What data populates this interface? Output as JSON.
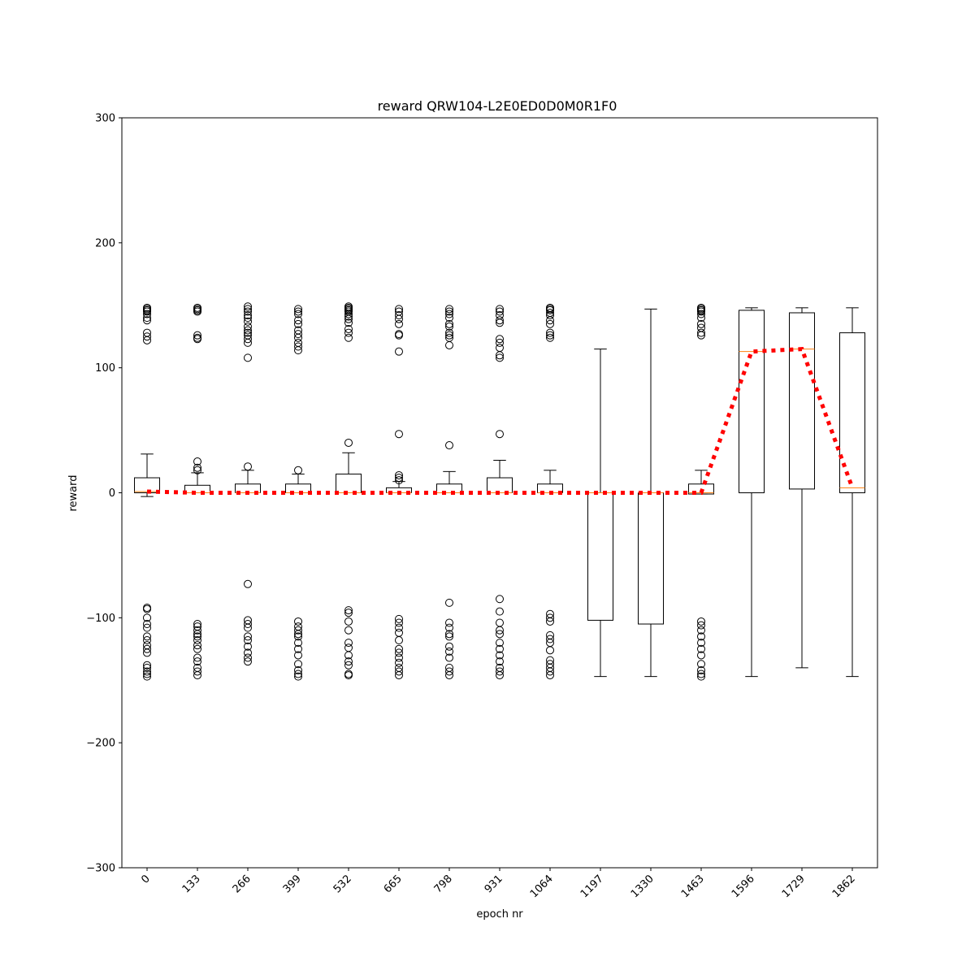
{
  "chart_data": {
    "type": "box",
    "title": "reward QRW104-L2E0ED0D0M0R1F0",
    "xlabel": "epoch nr",
    "ylabel": "reward",
    "ylim": [
      -300,
      300
    ],
    "yticks": [
      -300,
      -200,
      -100,
      0,
      100,
      200,
      300
    ],
    "ytick_labels": [
      "−300",
      "−200",
      "−100",
      "0",
      "100",
      "200",
      "300"
    ],
    "categories": [
      "0",
      "133",
      "266",
      "399",
      "532",
      "665",
      "798",
      "931",
      "1064",
      "1197",
      "1330",
      "1463",
      "1596",
      "1729",
      "1862"
    ],
    "box_color": "#000000",
    "median_color": "#ff7f0e",
    "mean_line_color": "#ff0000",
    "boxes": [
      {
        "q1": 0,
        "median": 1,
        "q3": 12,
        "whisker_low": -3,
        "whisker_high": 31,
        "outliers": [
          148,
          147,
          146,
          145,
          143,
          140,
          138,
          128,
          125,
          122,
          -92,
          -93,
          -100,
          -105,
          -108,
          -115,
          -118,
          -122,
          -125,
          -128,
          -138,
          -140,
          -143,
          -145,
          -147
        ]
      },
      {
        "q1": 0,
        "median": 0,
        "q3": 6,
        "whisker_low": 0,
        "whisker_high": 16,
        "outliers": [
          148,
          147,
          146,
          145,
          126,
          124,
          123,
          25,
          20,
          18,
          -105,
          -107,
          -110,
          -113,
          -115,
          -118,
          -122,
          -125,
          -132,
          -135,
          -140,
          -143,
          -146
        ]
      },
      {
        "q1": 0,
        "median": 0,
        "q3": 7,
        "whisker_low": 0,
        "whisker_high": 18,
        "outliers": [
          149,
          147,
          145,
          142,
          140,
          137,
          133,
          130,
          128,
          126,
          123,
          120,
          108,
          21,
          -73,
          -102,
          -105,
          -108,
          -115,
          -118,
          -123,
          -128,
          -132,
          -135
        ]
      },
      {
        "q1": 0,
        "median": 0,
        "q3": 7,
        "whisker_low": 0,
        "whisker_high": 15,
        "outliers": [
          147,
          145,
          143,
          138,
          135,
          130,
          127,
          124,
          120,
          117,
          114,
          18,
          -103,
          -107,
          -110,
          -113,
          -115,
          -120,
          -125,
          -130,
          -137,
          -142,
          -145,
          -147
        ]
      },
      {
        "q1": 0,
        "median": 0,
        "q3": 15,
        "whisker_low": 0,
        "whisker_high": 32,
        "outliers": [
          149,
          148,
          147,
          146,
          145,
          143,
          141,
          139,
          136,
          131,
          128,
          124,
          40,
          -94,
          -96,
          -103,
          -110,
          -120,
          -124,
          -130,
          -135,
          -138,
          -145,
          -146
        ]
      },
      {
        "q1": 0,
        "median": 0,
        "q3": 4,
        "whisker_low": 0,
        "whisker_high": 9,
        "outliers": [
          147,
          145,
          142,
          139,
          135,
          127,
          126,
          113,
          47,
          14,
          12,
          10,
          -101,
          -104,
          -108,
          -112,
          -118,
          -125,
          -128,
          -132,
          -136,
          -140,
          -143,
          -146
        ]
      },
      {
        "q1": 0,
        "median": 0,
        "q3": 7,
        "whisker_low": 0,
        "whisker_high": 17,
        "outliers": [
          147,
          145,
          143,
          140,
          135,
          133,
          128,
          126,
          124,
          118,
          38,
          -88,
          -104,
          -108,
          -113,
          -115,
          -123,
          -127,
          -132,
          -140,
          -143,
          -146
        ]
      },
      {
        "q1": 0,
        "median": 0,
        "q3": 12,
        "whisker_low": 0,
        "whisker_high": 26,
        "outliers": [
          147,
          145,
          142,
          138,
          136,
          123,
          120,
          116,
          110,
          108,
          47,
          -85,
          -95,
          -104,
          -110,
          -113,
          -120,
          -125,
          -130,
          -135,
          -140,
          -143,
          -146
        ]
      },
      {
        "q1": 0,
        "median": 0,
        "q3": 7,
        "whisker_low": 0,
        "whisker_high": 18,
        "outliers": [
          148,
          147,
          146,
          144,
          142,
          138,
          135,
          128,
          126,
          124,
          -97,
          -100,
          -103,
          -114,
          -117,
          -120,
          -126,
          -134,
          -137,
          -140,
          -143,
          -146
        ]
      },
      {
        "q1": -102,
        "median": 0,
        "q3": 0,
        "whisker_low": -147,
        "whisker_high": 115,
        "outliers": []
      },
      {
        "q1": -105,
        "median": 0,
        "q3": 0,
        "whisker_low": -147,
        "whisker_high": 147,
        "outliers": []
      },
      {
        "q1": -1,
        "median": 0,
        "q3": 7,
        "whisker_low": -1,
        "whisker_high": 18,
        "outliers": [
          148,
          147,
          146,
          145,
          143,
          140,
          135,
          132,
          128,
          126,
          -103,
          -106,
          -110,
          -115,
          -120,
          -125,
          -130,
          -137,
          -142,
          -145,
          -147
        ]
      },
      {
        "q1": 0,
        "median": 113,
        "q3": 146,
        "whisker_low": -147,
        "whisker_high": 148,
        "outliers": []
      },
      {
        "q1": 3,
        "median": 115,
        "q3": 144,
        "whisker_low": -140,
        "whisker_high": 148,
        "outliers": []
      },
      {
        "q1": 0,
        "median": 4,
        "q3": 128,
        "whisker_low": -147,
        "whisker_high": 148,
        "outliers": []
      }
    ],
    "mean_line": [
      1,
      0,
      0,
      0,
      0,
      0,
      0,
      0,
      0,
      0,
      0,
      0,
      113,
      115,
      4
    ],
    "grid": false
  }
}
